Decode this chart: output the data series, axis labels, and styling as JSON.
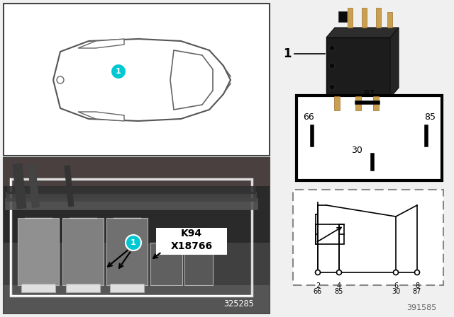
{
  "bg_color": "#f0f0f0",
  "teal_color": "#00c8d2",
  "white": "#ffffff",
  "black": "#000000",
  "dark_gray": "#1a1a1a",
  "mid_gray": "#666666",
  "light_gray": "#cccccc",
  "car_line_color": "#555555",
  "label_k94": "K94",
  "label_x18766": "X18766",
  "label_325285": "325285",
  "label_391585": "391585",
  "pin_box_labels": [
    "87",
    "66",
    "85",
    "30"
  ],
  "schematic_pins_num": [
    "2",
    "4",
    "6",
    "8"
  ],
  "schematic_pins_name": [
    "66",
    "85",
    "30",
    "87"
  ]
}
